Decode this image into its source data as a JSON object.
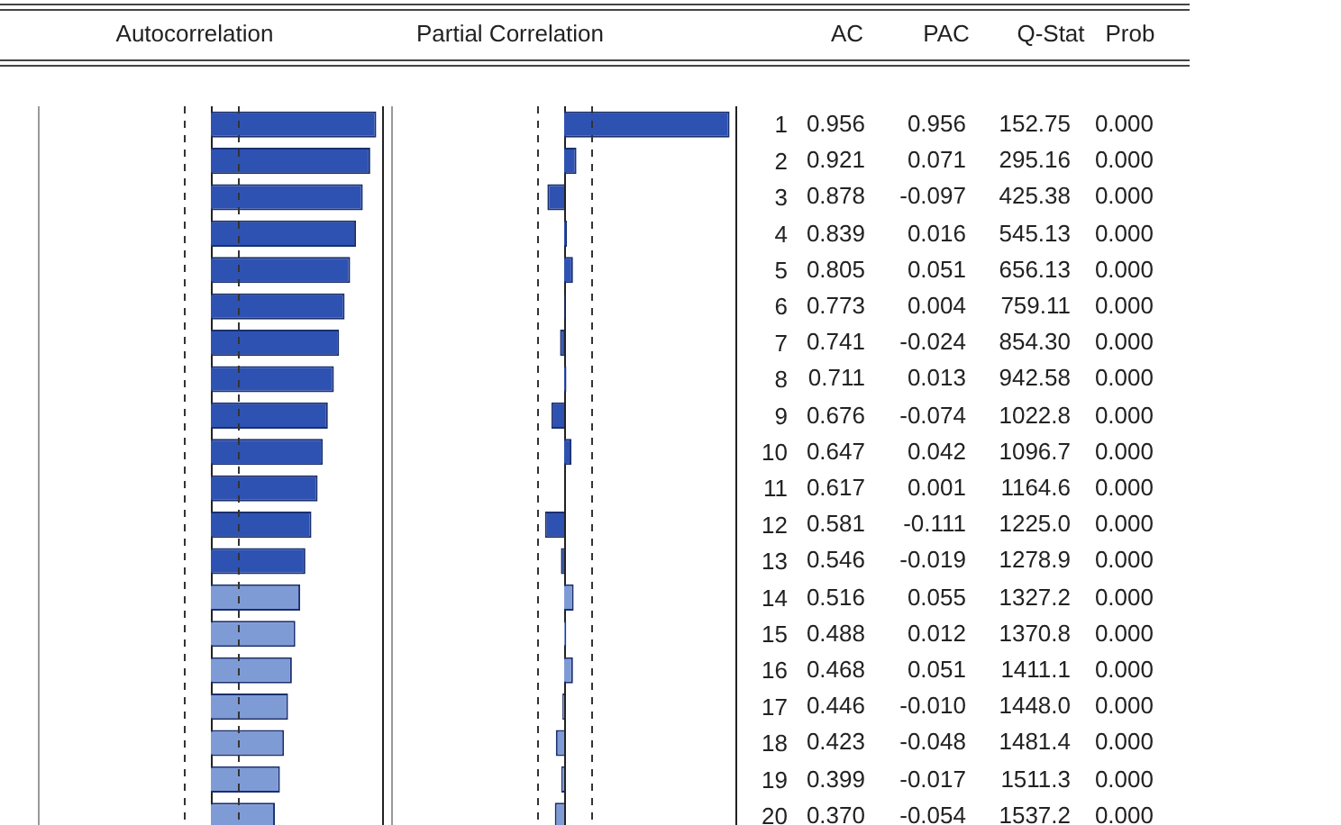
{
  "chart_data": [
    {
      "type": "bar",
      "orientation": "horizontal",
      "title": "Autocorrelation",
      "categories": [
        null,
        null,
        null,
        null,
        null,
        null,
        null,
        null,
        null,
        null,
        null,
        null,
        null,
        null,
        null,
        null,
        null,
        null,
        null,
        null
      ],
      "xlim": [
        -1,
        1
      ],
      "tick_labels": false,
      "series": [
        {
          "name": "AC",
          "colors": [
            "#2e52b2",
            "#2e52b2",
            "#2e52b2",
            "#2e52b2",
            "#2e52b2",
            "#2e52b2",
            "#2e52b2",
            "#2e52b2",
            "#2e52b2",
            "#2e52b2",
            "#2e52b2",
            "#2e52b2",
            "#2e52b2",
            "#7f9bd6",
            "#7f9bd6",
            "#7f9bd6",
            "#7f9bd6",
            "#7f9bd6",
            "#7f9bd6",
            "#7f9bd6"
          ],
          "values": [
            0.956,
            0.921,
            0.878,
            0.839,
            0.805,
            0.773,
            0.741,
            0.711,
            0.676,
            0.647,
            0.617,
            0.581,
            0.546,
            0.516,
            0.488,
            0.468,
            0.446,
            0.423,
            0.399,
            0.37
          ],
          "value_labels": [
            "0.956",
            "0.921",
            "0.878",
            "0.839",
            "0.805",
            "0.773",
            "0.741",
            "0.711",
            "0.676",
            "0.647",
            "0.617",
            "0.581",
            "0.546",
            "0.516",
            "0.488",
            "0.468",
            "0.446",
            "0.423",
            "0.399",
            "0.370"
          ]
        }
      ],
      "ref_lines": [
        {
          "axis": "x",
          "value": -0.16,
          "line_style": "dashed",
          "color": "#333333"
        },
        {
          "axis": "x",
          "value": 0.16,
          "line_style": "dashed",
          "color": "#333333"
        }
      ]
    },
    {
      "type": "bar",
      "orientation": "horizontal",
      "title": "Partial Correlation",
      "categories": [
        "1",
        "2",
        "3",
        "4",
        "5",
        "6",
        "7",
        "8",
        "9",
        "10",
        "11",
        "12",
        "13",
        "14",
        "15",
        "16",
        "17",
        "18",
        "19",
        "20"
      ],
      "xlim": [
        -1,
        1
      ],
      "tick_labels": "y",
      "series": [
        {
          "name": "PAC",
          "colors": [
            "#2e52b2",
            "#2e52b2",
            "#2e52b2",
            "#2e52b2",
            "#2e52b2",
            "#2e52b2",
            "#2e52b2",
            "#2e52b2",
            "#2e52b2",
            "#2e52b2",
            "#2e52b2",
            "#2e52b2",
            "#2e52b2",
            "#7f9bd6",
            "#7f9bd6",
            "#7f9bd6",
            "#7f9bd6",
            "#7f9bd6",
            "#7f9bd6",
            "#7f9bd6"
          ],
          "values": [
            0.956,
            0.071,
            -0.097,
            0.016,
            0.051,
            0.004,
            -0.024,
            0.013,
            -0.074,
            0.042,
            0.001,
            -0.111,
            -0.019,
            0.055,
            0.012,
            0.051,
            -0.01,
            -0.048,
            -0.017,
            -0.054
          ],
          "value_labels": [
            "0.956",
            "0.071",
            "-0.097",
            "0.016",
            "0.051",
            "0.004",
            "-0.024",
            "0.013",
            "-0.074",
            "0.042",
            "0.001",
            "-0.111",
            "-0.019",
            "0.055",
            "0.012",
            "0.051",
            "-0.010",
            "-0.048",
            "-0.017",
            "-0.054"
          ]
        }
      ],
      "ref_lines": [
        {
          "axis": "x",
          "value": -0.16,
          "line_style": "dashed",
          "color": "#333333"
        },
        {
          "axis": "x",
          "value": 0.16,
          "line_style": "dashed",
          "color": "#333333"
        }
      ]
    },
    {
      "type": "other",
      "annotations": [
        "Q-Stat",
        "Prob",
        "152.75",
        "0.000",
        "295.16",
        "0.000",
        "425.38",
        "0.000",
        "545.13",
        "0.000",
        "656.13",
        "0.000",
        "759.11",
        "0.000",
        "854.30",
        "0.000",
        "942.58",
        "0.000",
        "1022.8",
        "0.000",
        "1096.7",
        "0.000",
        "1164.6",
        "0.000",
        "1225.0",
        "0.000",
        "1278.9",
        "0.000",
        "1327.2",
        "0.000",
        "1370.8",
        "0.000",
        "1411.1",
        "0.000",
        "1448.0",
        "0.000",
        "1481.4",
        "0.000",
        "1511.3",
        "0.000",
        "1537.2",
        "0.000"
      ]
    }
  ]
}
